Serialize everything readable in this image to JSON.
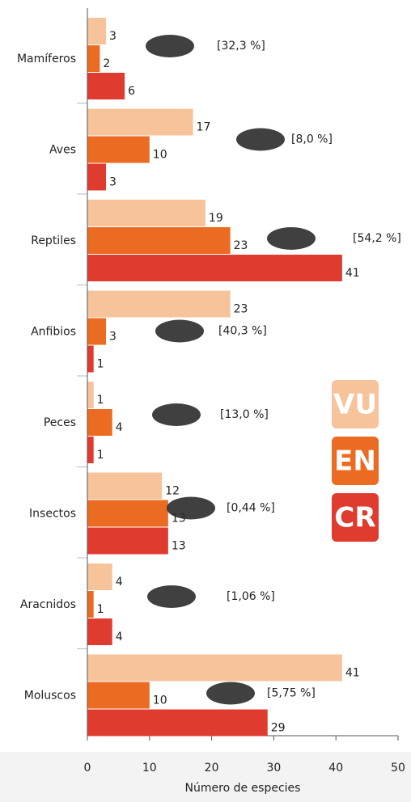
{
  "chart_data": {
    "type": "hbar",
    "categories": [
      "Mamíferos",
      "Aves",
      "Reptiles",
      "Anfibios",
      "Peces",
      "Insectos",
      "Aracnidos",
      "Moluscos"
    ],
    "series": [
      {
        "name": "VU",
        "color": "#f7c39b",
        "values": [
          3,
          17,
          19,
          23,
          1,
          12,
          4,
          41
        ]
      },
      {
        "name": "EN",
        "color": "#ec6b22",
        "values": [
          2,
          10,
          23,
          3,
          4,
          13,
          1,
          10
        ]
      },
      {
        "name": "CR",
        "color": "#e03b2f",
        "values": [
          6,
          3,
          41,
          1,
          1,
          13,
          4,
          29
        ]
      }
    ],
    "annotations": [
      "[32,3 %]",
      "[8,0 %]",
      "[54,2 %]",
      "[40,3 %]",
      "[13,0 %]",
      "[0,44 %]",
      "[1,06 %]",
      "[5,75 %]"
    ],
    "xlabel": "Número de especies",
    "xlim": [
      0,
      50
    ],
    "xticks": [
      0,
      10,
      20,
      30,
      40,
      50
    ]
  }
}
